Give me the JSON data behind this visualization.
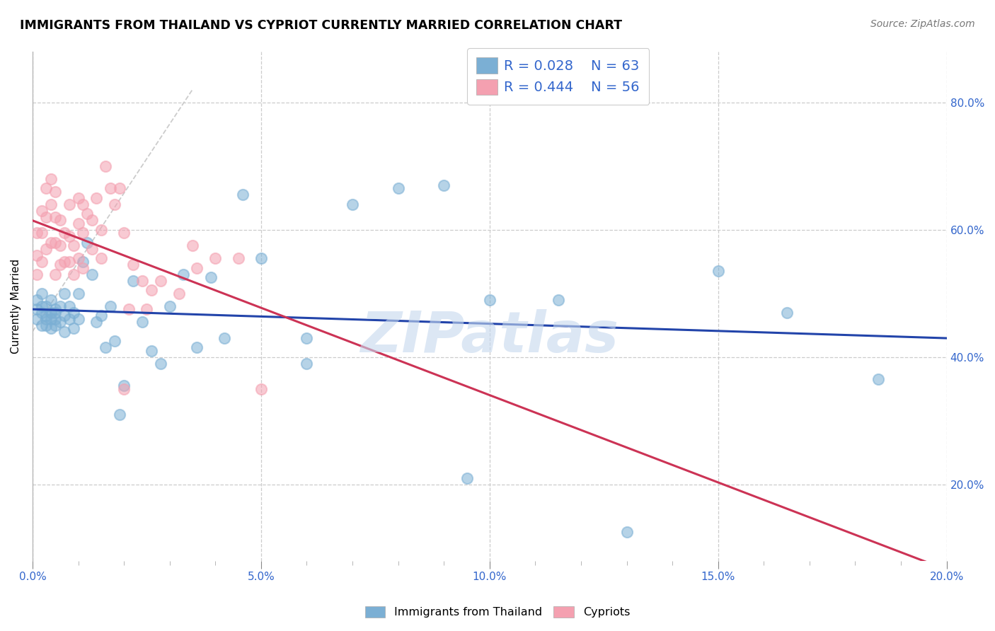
{
  "title": "IMMIGRANTS FROM THAILAND VS CYPRIOT CURRENTLY MARRIED CORRELATION CHART",
  "source": "Source: ZipAtlas.com",
  "ylabel": "Currently Married",
  "x_range": [
    0.0,
    0.2
  ],
  "y_range": [
    0.08,
    0.88
  ],
  "color_blue": "#7BAFD4",
  "color_pink": "#F4A0B0",
  "trendline_blue_color": "#2244AA",
  "trendline_pink_color": "#CC3355",
  "watermark": "ZIPatlas",
  "watermark_color": "#C5D8EE",
  "legend_label1": "R = 0.028    N = 63",
  "legend_label2": "R = 0.444    N = 56",
  "bottom_label1": "Immigrants from Thailand",
  "bottom_label2": "Cypriots",
  "blue_x": [
    0.001,
    0.001,
    0.001,
    0.002,
    0.002,
    0.002,
    0.002,
    0.003,
    0.003,
    0.003,
    0.003,
    0.004,
    0.004,
    0.004,
    0.004,
    0.005,
    0.005,
    0.005,
    0.005,
    0.006,
    0.006,
    0.007,
    0.007,
    0.007,
    0.008,
    0.008,
    0.009,
    0.009,
    0.01,
    0.01,
    0.011,
    0.012,
    0.013,
    0.014,
    0.015,
    0.016,
    0.017,
    0.018,
    0.019,
    0.02,
    0.022,
    0.024,
    0.026,
    0.028,
    0.03,
    0.033,
    0.036,
    0.039,
    0.042,
    0.046,
    0.05,
    0.06,
    0.07,
    0.08,
    0.09,
    0.1,
    0.115,
    0.13,
    0.15,
    0.165,
    0.095,
    0.185,
    0.06
  ],
  "blue_y": [
    0.475,
    0.49,
    0.46,
    0.47,
    0.48,
    0.45,
    0.5,
    0.465,
    0.45,
    0.48,
    0.46,
    0.47,
    0.445,
    0.49,
    0.46,
    0.47,
    0.45,
    0.475,
    0.46,
    0.455,
    0.48,
    0.44,
    0.465,
    0.5,
    0.46,
    0.48,
    0.47,
    0.445,
    0.46,
    0.5,
    0.55,
    0.58,
    0.53,
    0.455,
    0.465,
    0.415,
    0.48,
    0.425,
    0.31,
    0.355,
    0.52,
    0.455,
    0.41,
    0.39,
    0.48,
    0.53,
    0.415,
    0.525,
    0.43,
    0.655,
    0.555,
    0.43,
    0.64,
    0.665,
    0.67,
    0.49,
    0.49,
    0.125,
    0.535,
    0.47,
    0.21,
    0.365,
    0.39
  ],
  "pink_x": [
    0.001,
    0.001,
    0.001,
    0.002,
    0.002,
    0.002,
    0.003,
    0.003,
    0.003,
    0.004,
    0.004,
    0.004,
    0.005,
    0.005,
    0.005,
    0.005,
    0.006,
    0.006,
    0.006,
    0.007,
    0.007,
    0.008,
    0.008,
    0.008,
    0.009,
    0.009,
    0.01,
    0.01,
    0.01,
    0.011,
    0.011,
    0.011,
    0.012,
    0.013,
    0.013,
    0.014,
    0.015,
    0.015,
    0.016,
    0.017,
    0.018,
    0.019,
    0.02,
    0.021,
    0.022,
    0.024,
    0.026,
    0.028,
    0.032,
    0.036,
    0.04,
    0.045,
    0.02,
    0.025,
    0.035,
    0.05
  ],
  "pink_y": [
    0.53,
    0.56,
    0.595,
    0.55,
    0.595,
    0.63,
    0.57,
    0.62,
    0.665,
    0.58,
    0.64,
    0.68,
    0.53,
    0.58,
    0.62,
    0.66,
    0.545,
    0.575,
    0.615,
    0.55,
    0.595,
    0.55,
    0.59,
    0.64,
    0.53,
    0.575,
    0.555,
    0.61,
    0.65,
    0.54,
    0.595,
    0.64,
    0.625,
    0.57,
    0.615,
    0.65,
    0.555,
    0.6,
    0.7,
    0.665,
    0.64,
    0.665,
    0.595,
    0.475,
    0.545,
    0.52,
    0.505,
    0.52,
    0.5,
    0.54,
    0.555,
    0.555,
    0.35,
    0.475,
    0.575,
    0.35
  ]
}
